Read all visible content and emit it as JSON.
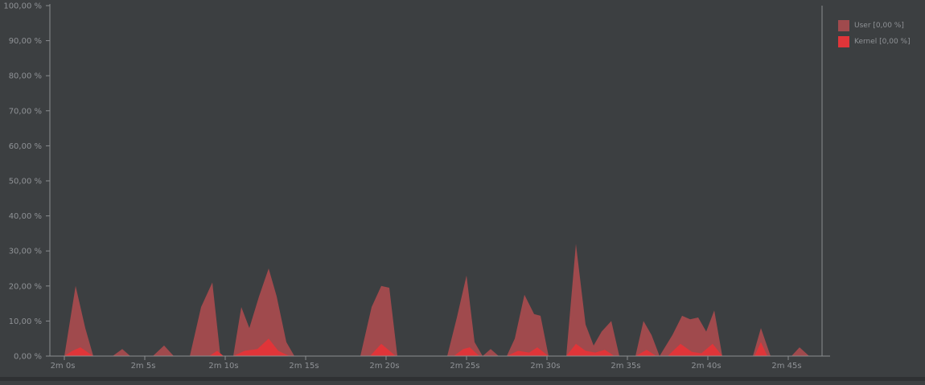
{
  "chart_data": {
    "type": "area",
    "title": "",
    "xlabel": "",
    "ylabel": "",
    "ylim": [
      0,
      100
    ],
    "y_ticks": [
      "0,00 %",
      "10,00 %",
      "20,00 %",
      "30,00 %",
      "40,00 %",
      "50,00 %",
      "60,00 %",
      "70,00 %",
      "80,00 %",
      "90,00 %",
      "100,00 %"
    ],
    "x_ticks": [
      "2m 0s",
      "2m 5s",
      "2m 10s",
      "2m 15s",
      "2m 20s",
      "2m 25s",
      "2m 30s",
      "2m 35s",
      "2m 40s",
      "2m 45s"
    ],
    "x_tick_values": [
      120,
      125,
      130,
      135,
      140,
      145,
      150,
      155,
      160,
      165
    ],
    "xlim": [
      120,
      167
    ],
    "series": [
      {
        "name": "User [0,00 %]",
        "color": "#a04a4d",
        "points": [
          [
            120.0,
            0
          ],
          [
            120.7,
            20
          ],
          [
            121.3,
            8
          ],
          [
            121.8,
            0
          ],
          [
            123.0,
            0
          ],
          [
            123.6,
            2
          ],
          [
            124.1,
            0
          ],
          [
            125.5,
            0
          ],
          [
            126.2,
            3
          ],
          [
            126.8,
            0
          ],
          [
            127.8,
            0
          ],
          [
            128.5,
            14
          ],
          [
            129.2,
            21
          ],
          [
            129.7,
            0
          ],
          [
            130.5,
            0
          ],
          [
            131.0,
            14
          ],
          [
            131.5,
            8
          ],
          [
            132.1,
            17
          ],
          [
            132.7,
            25
          ],
          [
            133.2,
            17
          ],
          [
            133.8,
            4
          ],
          [
            134.3,
            0
          ],
          [
            138.4,
            0
          ],
          [
            139.1,
            14
          ],
          [
            139.7,
            20
          ],
          [
            140.2,
            19.5
          ],
          [
            140.7,
            0
          ],
          [
            143.8,
            0
          ],
          [
            144.4,
            11
          ],
          [
            145.0,
            23
          ],
          [
            145.5,
            4
          ],
          [
            146.0,
            0
          ],
          [
            146.5,
            2
          ],
          [
            147.0,
            0
          ],
          [
            147.5,
            0
          ],
          [
            148.0,
            5
          ],
          [
            148.6,
            17.5
          ],
          [
            149.2,
            12
          ],
          [
            149.6,
            11.5
          ],
          [
            150.1,
            0
          ],
          [
            151.2,
            0
          ],
          [
            151.8,
            32
          ],
          [
            152.4,
            9
          ],
          [
            152.9,
            3
          ],
          [
            153.4,
            7
          ],
          [
            154.0,
            10
          ],
          [
            154.5,
            0
          ],
          [
            155.5,
            0
          ],
          [
            156.0,
            10
          ],
          [
            156.5,
            6
          ],
          [
            157.0,
            0
          ],
          [
            157.8,
            6
          ],
          [
            158.4,
            11.5
          ],
          [
            158.9,
            10.5
          ],
          [
            159.4,
            11
          ],
          [
            159.9,
            7
          ],
          [
            160.4,
            13
          ],
          [
            160.9,
            0
          ],
          [
            162.8,
            0
          ],
          [
            163.3,
            8
          ],
          [
            163.9,
            0
          ],
          [
            165.2,
            0
          ],
          [
            165.7,
            2.5
          ],
          [
            166.3,
            0
          ]
        ]
      },
      {
        "name": "Kernel [0,00 %]",
        "color": "#e03539",
        "points": [
          [
            120.0,
            0
          ],
          [
            120.5,
            1.5
          ],
          [
            121.0,
            2.5
          ],
          [
            121.8,
            0
          ],
          [
            129.0,
            0
          ],
          [
            129.5,
            1.5
          ],
          [
            129.9,
            0
          ],
          [
            130.5,
            0
          ],
          [
            131.2,
            1.5
          ],
          [
            132.0,
            2
          ],
          [
            132.7,
            5
          ],
          [
            133.3,
            1.5
          ],
          [
            134.0,
            0
          ],
          [
            139.0,
            0
          ],
          [
            139.7,
            3.5
          ],
          [
            140.6,
            0
          ],
          [
            144.2,
            0
          ],
          [
            144.8,
            2
          ],
          [
            145.2,
            2.5
          ],
          [
            145.8,
            0
          ],
          [
            147.5,
            0
          ],
          [
            148.2,
            1.5
          ],
          [
            148.9,
            1
          ],
          [
            149.4,
            2.5
          ],
          [
            150.1,
            0
          ],
          [
            151.2,
            0
          ],
          [
            151.8,
            3.5
          ],
          [
            152.4,
            1.5
          ],
          [
            153.0,
            1
          ],
          [
            153.6,
            1.8
          ],
          [
            154.2,
            0
          ],
          [
            155.5,
            0
          ],
          [
            156.2,
            1.8
          ],
          [
            156.8,
            0
          ],
          [
            157.5,
            0
          ],
          [
            158.3,
            3.5
          ],
          [
            159.0,
            1.2
          ],
          [
            159.6,
            0.8
          ],
          [
            160.3,
            3.5
          ],
          [
            160.9,
            0
          ],
          [
            162.9,
            0
          ],
          [
            163.3,
            4
          ],
          [
            163.7,
            0
          ]
        ]
      }
    ],
    "legend_position": "top-right",
    "grid": false
  }
}
